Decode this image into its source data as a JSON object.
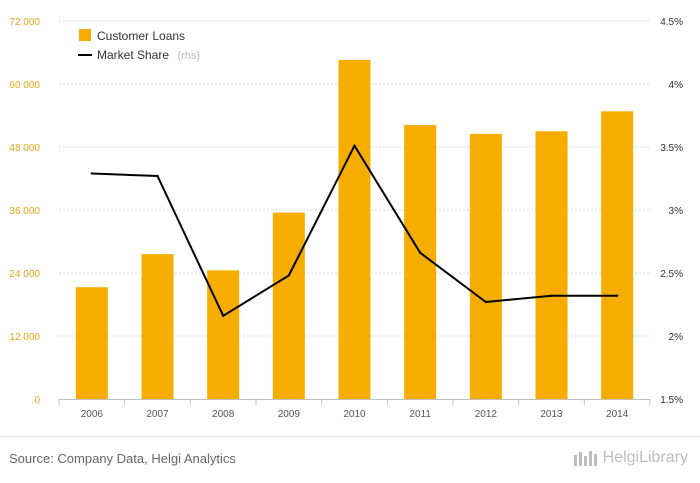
{
  "chart_data": {
    "type": "bar",
    "categories": [
      "2006",
      "2007",
      "2008",
      "2009",
      "2010",
      "2011",
      "2012",
      "2013",
      "2014"
    ],
    "series": [
      {
        "name": "Customer Loans",
        "type": "bar",
        "axis": "left",
        "color": "#f7ad00",
        "values": [
          21300,
          27600,
          24500,
          35500,
          64600,
          52200,
          50500,
          51000,
          54800
        ]
      },
      {
        "name": "Market Share",
        "type": "line",
        "axis": "right",
        "color": "#000000",
        "values": [
          3.29,
          3.27,
          2.16,
          2.48,
          3.51,
          2.66,
          2.27,
          2.32,
          2.32
        ]
      }
    ],
    "y_left": {
      "min": 0,
      "max": 72000,
      "ticks": [
        "0",
        "12 000",
        "24 000",
        "36 000",
        "48 000",
        "60 000",
        "72 000"
      ]
    },
    "y_right": {
      "min": 1.5,
      "max": 4.5,
      "ticks": [
        "1.5%",
        "2%",
        "2.5%",
        "3%",
        "3.5%",
        "4%",
        "4.5%"
      ]
    },
    "legend": {
      "position": "top-left",
      "bar_label": "Customer Loans",
      "line_label": "Market Share",
      "line_suffix": "(rhs)"
    },
    "grid": "horizontal dashed"
  },
  "footer": {
    "source": "Source: Company Data, Helgi Analytics",
    "brand": "HelgiLibrary"
  }
}
